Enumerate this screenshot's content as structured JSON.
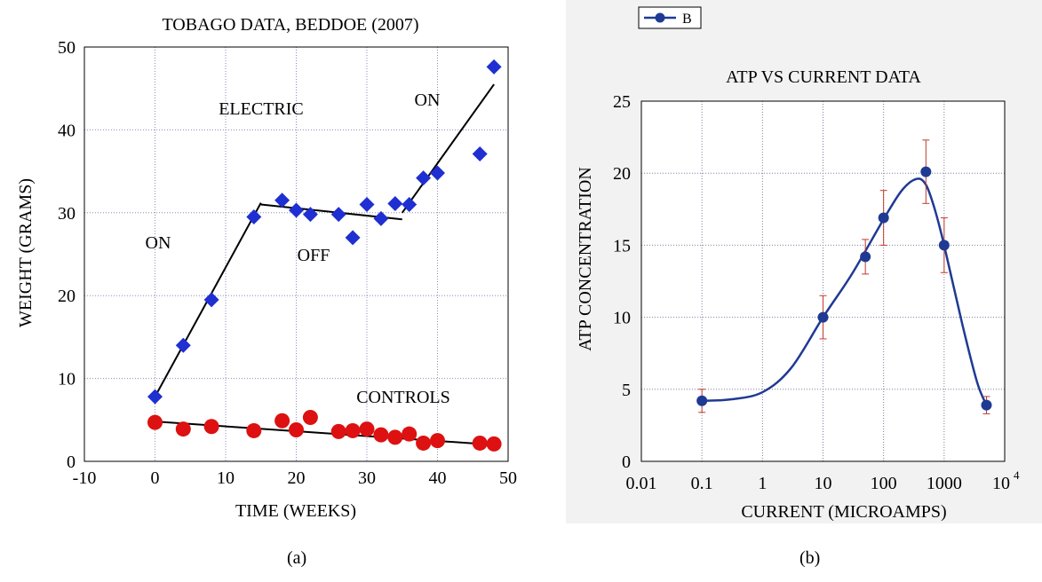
{
  "chart_data": [
    {
      "type": "scatter",
      "title": "TOBAGO DATA, BEDDOE (2007)",
      "xlabel": "TIME (WEEKS)",
      "ylabel": "WEIGHT (GRAMS)",
      "xlim": [
        -10,
        50
      ],
      "ylim": [
        0,
        50
      ],
      "x_ticks": [
        "-10",
        "0",
        "10",
        "20",
        "30",
        "40",
        "50"
      ],
      "y_ticks": [
        "0",
        "10",
        "20",
        "30",
        "40",
        "50"
      ],
      "grid": true,
      "annotations": [
        "ON",
        "ELECTRIC",
        "OFF",
        "ON",
        "CONTROLS"
      ],
      "series": [
        {
          "marker": "diamond",
          "color": "#1f2fd1",
          "x": [
            0,
            4,
            8,
            14,
            18,
            20,
            22,
            26,
            28,
            30,
            32,
            34,
            36,
            38,
            40,
            46,
            48
          ],
          "y": [
            7.8,
            14.0,
            19.5,
            29.5,
            31.5,
            30.3,
            29.8,
            29.8,
            27.0,
            31.0,
            29.3,
            31.1,
            31.0,
            34.2,
            34.8,
            37.1,
            47.6
          ]
        },
        {
          "marker": "circle",
          "color": "#dd1111",
          "x": [
            0,
            4,
            8,
            14,
            18,
            20,
            22,
            26,
            28,
            30,
            32,
            34,
            36,
            38,
            40,
            46,
            48
          ],
          "y": [
            4.7,
            3.9,
            4.2,
            3.7,
            4.9,
            3.8,
            5.3,
            3.6,
            3.7,
            3.9,
            3.2,
            2.9,
            3.3,
            2.2,
            2.5,
            2.2,
            2.1
          ]
        }
      ],
      "fit_lines": [
        {
          "x": [
            0,
            15
          ],
          "y": [
            7.8,
            31.2
          ]
        },
        {
          "x": [
            15,
            35
          ],
          "y": [
            31.0,
            29.2
          ]
        },
        {
          "x": [
            35,
            48
          ],
          "y": [
            30.0,
            45.5
          ]
        },
        {
          "x": [
            0,
            48
          ],
          "y": [
            4.8,
            2.0
          ]
        }
      ],
      "caption": "(a)"
    },
    {
      "type": "line",
      "title": "ATP VS CURRENT DATA",
      "xlabel": "CURRENT (MICROAMPS)",
      "ylabel": "ATP CONCENTRATION",
      "x_scale": "log",
      "xlim": [
        0.01,
        10000
      ],
      "ylim": [
        0,
        25
      ],
      "x_ticks": [
        "0.01",
        "0.1",
        "1",
        "10",
        "100",
        "1000",
        "10"
      ],
      "x_tick_sup": "4",
      "y_ticks": [
        "0",
        "5",
        "10",
        "15",
        "20",
        "25"
      ],
      "grid": true,
      "legend_position": "top-left",
      "series": [
        {
          "name": "B",
          "color": "#1f3a93",
          "error_color": "#c0392b",
          "x": [
            0.1,
            10,
            50,
            100,
            500,
            1000,
            5000
          ],
          "y": [
            4.2,
            10.0,
            14.2,
            16.9,
            20.1,
            15.0,
            3.9
          ],
          "err": [
            0.8,
            1.5,
            1.2,
            1.9,
            2.2,
            1.9,
            0.6
          ]
        }
      ],
      "curve": [
        [
          0.1,
          4.2
        ],
        [
          0.3,
          4.3
        ],
        [
          1,
          4.8
        ],
        [
          3,
          6.5
        ],
        [
          10,
          10.0
        ],
        [
          30,
          13.0
        ],
        [
          100,
          16.8
        ],
        [
          200,
          18.8
        ],
        [
          350,
          19.6
        ],
        [
          500,
          19.2
        ],
        [
          700,
          17.5
        ],
        [
          1000,
          15.0
        ],
        [
          2000,
          9.5
        ],
        [
          3500,
          5.5
        ],
        [
          5000,
          3.9
        ]
      ],
      "caption": "(b)"
    }
  ]
}
